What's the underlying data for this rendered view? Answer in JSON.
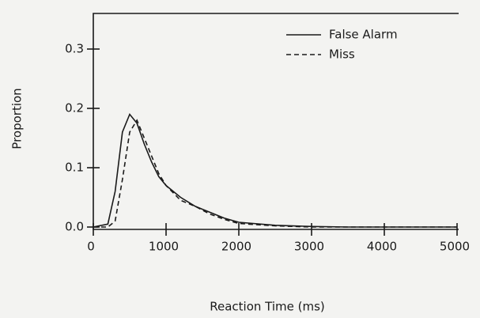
{
  "chart_data": {
    "type": "line",
    "xlabel": "Reaction Time (ms)",
    "ylabel": "Proportion",
    "x": [
      0,
      200,
      300,
      400,
      500,
      600,
      700,
      800,
      900,
      1000,
      1200,
      1400,
      1600,
      1800,
      2000,
      2500,
      3000,
      3500,
      4000,
      5000
    ],
    "series": [
      {
        "name": "False Alarm",
        "color": "#1a1a1a",
        "linestyle": "solid",
        "values": [
          0,
          0.005,
          0.06,
          0.16,
          0.19,
          0.175,
          0.14,
          0.11,
          0.085,
          0.07,
          0.05,
          0.035,
          0.025,
          0.015,
          0.008,
          0.003,
          0.001,
          0,
          0,
          0
        ]
      },
      {
        "name": "Miss",
        "color": "#1a1a1a",
        "linestyle": "dashed",
        "values": [
          0,
          0,
          0.01,
          0.08,
          0.16,
          0.18,
          0.15,
          0.12,
          0.09,
          0.07,
          0.045,
          0.035,
          0.022,
          0.013,
          0.006,
          0.002,
          0,
          0,
          0,
          0
        ]
      }
    ],
    "xlim": [
      0,
      5000
    ],
    "xticks": [
      0,
      1000,
      2000,
      3000,
      4000,
      5000
    ],
    "ylim": [
      0,
      0.36
    ],
    "yticks": [
      {
        "value": 0,
        "label": "0.0"
      },
      0.1,
      0.2,
      0.3
    ],
    "legend": "upper right"
  }
}
